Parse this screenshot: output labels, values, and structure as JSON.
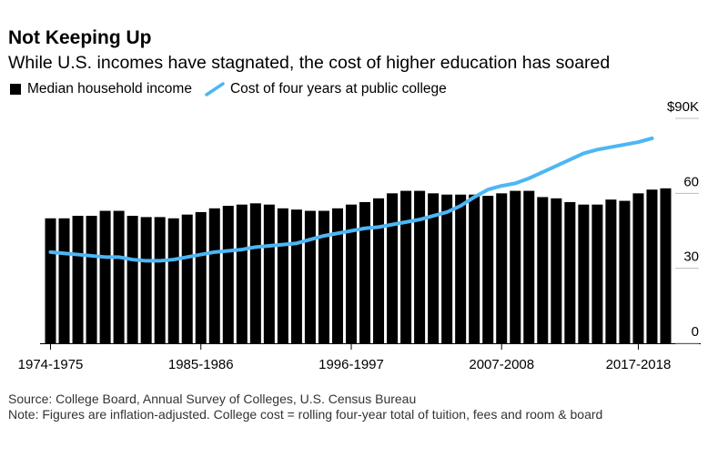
{
  "chart_data": {
    "type": "bar+line",
    "title": "Not Keeping Up",
    "subtitle": "While U.S. incomes have stagnated, the cost of higher education has soared",
    "legend": {
      "bar_label": "Median household income",
      "line_label": "Cost of four years at public college",
      "placement": "top-left"
    },
    "y_axis": {
      "side": "right",
      "ylim": [
        0,
        90
      ],
      "ticks": [
        {
          "value": 0,
          "label": "0"
        },
        {
          "value": 30,
          "label": "30"
        },
        {
          "value": 60,
          "label": "60"
        },
        {
          "value": 90,
          "label": "$90K"
        }
      ]
    },
    "x_tick_labels": [
      "1974-1975",
      "1985-1986",
      "1996-1997",
      "2007-2008",
      "2017-2018"
    ],
    "x_tick_indices": [
      0,
      11,
      22,
      33,
      43
    ],
    "series": [
      {
        "name": "Median household income",
        "type": "bar",
        "color": "#000000",
        "values": [
          50.0,
          50.0,
          51.0,
          51.0,
          53.0,
          53.0,
          51.0,
          50.5,
          50.5,
          50.0,
          51.5,
          52.5,
          54.0,
          55.0,
          55.5,
          56.0,
          55.5,
          54.0,
          53.5,
          53.0,
          53.0,
          54.0,
          55.5,
          56.5,
          58.0,
          60.0,
          61.0,
          61.0,
          60.0,
          59.5,
          59.5,
          59.5,
          59.0,
          60.0,
          61.0,
          61.0,
          58.5,
          58.0,
          56.5,
          55.5,
          55.5,
          57.5,
          57.0,
          60.0,
          61.5,
          62.0
        ]
      },
      {
        "name": "Cost of four years at public college",
        "type": "line",
        "color": "#4db6f5",
        "values": [
          36.5,
          36.0,
          35.5,
          35.0,
          34.5,
          34.5,
          33.5,
          33.0,
          33.0,
          33.5,
          34.5,
          35.5,
          36.5,
          37.0,
          37.5,
          38.5,
          39.0,
          39.5,
          40.0,
          41.5,
          43.0,
          44.0,
          45.0,
          46.0,
          46.5,
          47.5,
          48.5,
          49.5,
          51.0,
          52.5,
          55.0,
          58.5,
          61.5,
          63.0,
          64.0,
          66.0,
          68.5,
          71.0,
          73.5,
          76.0,
          77.5,
          78.5,
          79.5,
          80.5,
          82.0
        ]
      }
    ],
    "grid": "none"
  },
  "notes": {
    "source": "Source: College Board, Annual Survey of Colleges, U.S. Census Bureau",
    "note": "Note: Figures are inflation-adjusted. College cost = rolling four-year total of tuition, fees and room & board"
  }
}
